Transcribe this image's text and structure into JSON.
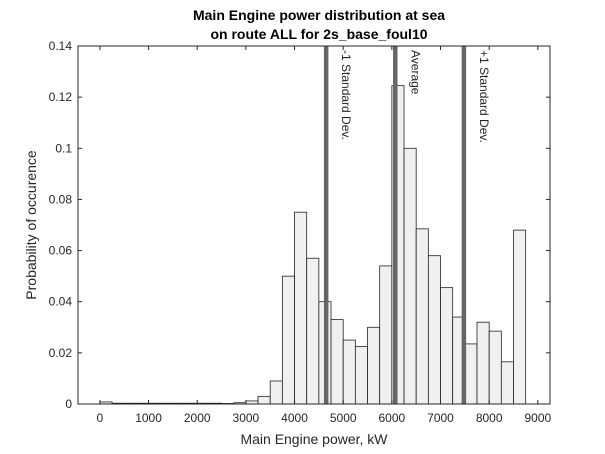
{
  "chart_data": {
    "type": "bar",
    "title_lines": [
      "Main Engine power distribution at sea",
      "on route ALL for 2s_base_foul10"
    ],
    "xlabel": "Main Engine power, kW",
    "ylabel": "Probability of occurence",
    "xlim": [
      -450,
      9250
    ],
    "ylim": [
      0,
      0.14
    ],
    "xticks": [
      0,
      1000,
      2000,
      3000,
      4000,
      5000,
      6000,
      7000,
      8000,
      9000
    ],
    "xtick_labels": [
      "0",
      "1000",
      "2000",
      "3000",
      "4000",
      "5000",
      "6000",
      "7000",
      "8000",
      "9000"
    ],
    "yticks": [
      0,
      0.02,
      0.04,
      0.06,
      0.08,
      0.1,
      0.12,
      0.14
    ],
    "ytick_labels": [
      "0",
      "0.02",
      "0.04",
      "0.06",
      "0.08",
      "0.1",
      "0.12",
      "0.14"
    ],
    "bin_width": 250,
    "bins": [
      {
        "x0": 0,
        "value": 0.0008
      },
      {
        "x0": 250,
        "value": 0.0003
      },
      {
        "x0": 500,
        "value": 0.0003
      },
      {
        "x0": 750,
        "value": 0.0003
      },
      {
        "x0": 1000,
        "value": 0.0003
      },
      {
        "x0": 1250,
        "value": 0.0003
      },
      {
        "x0": 1500,
        "value": 0.0003
      },
      {
        "x0": 1750,
        "value": 0.0003
      },
      {
        "x0": 2000,
        "value": 0.0003
      },
      {
        "x0": 2250,
        "value": 0.0003
      },
      {
        "x0": 2500,
        "value": 0.0002
      },
      {
        "x0": 2750,
        "value": 0.0005
      },
      {
        "x0": 3000,
        "value": 0.0012
      },
      {
        "x0": 3250,
        "value": 0.003
      },
      {
        "x0": 3500,
        "value": 0.009
      },
      {
        "x0": 3750,
        "value": 0.05
      },
      {
        "x0": 4000,
        "value": 0.075
      },
      {
        "x0": 4250,
        "value": 0.057
      },
      {
        "x0": 4500,
        "value": 0.04
      },
      {
        "x0": 4750,
        "value": 0.033
      },
      {
        "x0": 5000,
        "value": 0.025
      },
      {
        "x0": 5250,
        "value": 0.0225
      },
      {
        "x0": 5500,
        "value": 0.03
      },
      {
        "x0": 5750,
        "value": 0.054
      },
      {
        "x0": 6000,
        "value": 0.1245
      },
      {
        "x0": 6250,
        "value": 0.1
      },
      {
        "x0": 6500,
        "value": 0.0685
      },
      {
        "x0": 6750,
        "value": 0.058
      },
      {
        "x0": 7000,
        "value": 0.0455
      },
      {
        "x0": 7250,
        "value": 0.034
      },
      {
        "x0": 7500,
        "value": 0.0235
      },
      {
        "x0": 7750,
        "value": 0.032
      },
      {
        "x0": 8000,
        "value": 0.0285
      },
      {
        "x0": 8250,
        "value": 0.0165
      },
      {
        "x0": 8500,
        "value": 0.068
      }
    ],
    "reference_lines": [
      {
        "label": "-1 Standard Dev.",
        "x": 4650
      },
      {
        "label": "Average",
        "x": 6070
      },
      {
        "label": "+1 Standard Dev.",
        "x": 7480
      }
    ],
    "grid": false,
    "colors": {
      "bar_fill": "#f0f0f0",
      "bar_edge": "#222222",
      "reference_line": "#666666",
      "axis": "#262626"
    }
  }
}
